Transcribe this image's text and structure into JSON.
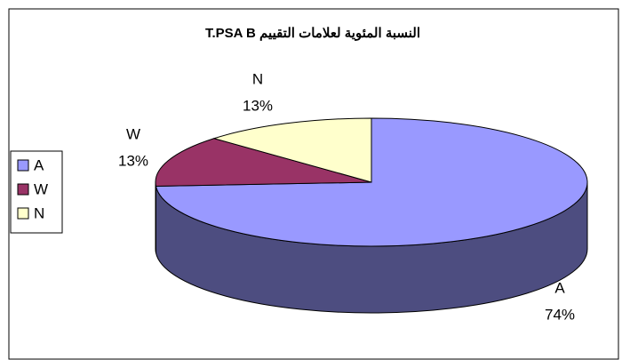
{
  "chart_data": {
    "type": "pie",
    "title": "النسبة المئوية لعلامات التقييم T.PSA B",
    "categories": [
      "A",
      "W",
      "N"
    ],
    "values": [
      74,
      13,
      13
    ],
    "value_labels": [
      "74%",
      "13%",
      "13%"
    ],
    "colors": [
      "#9999ff",
      "#993366",
      "#ffffcc"
    ],
    "legend": "left"
  }
}
